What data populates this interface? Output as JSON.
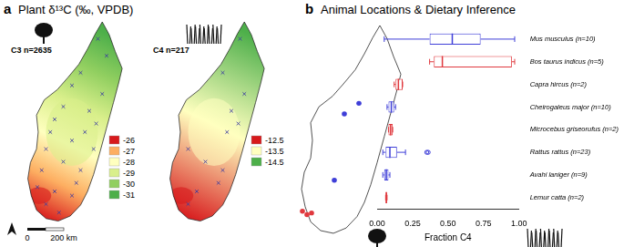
{
  "panel_a": {
    "panel_label": "a",
    "title": "Plant δ¹³C (‰, VPDB)",
    "maps": [
      {
        "label": "C3 n=2635",
        "legend": [
          {
            "value": -26,
            "color": "#d7191c"
          },
          {
            "value": -27,
            "color": "#fdae61"
          },
          {
            "value": -28,
            "color": "#ffffbf"
          },
          {
            "value": -29,
            "color": "#d9ef8b"
          },
          {
            "value": -30,
            "color": "#91cf60"
          },
          {
            "value": -31,
            "color": "#4daf4a"
          }
        ]
      },
      {
        "label": "C4 n=217",
        "legend": [
          {
            "value": -12.5,
            "color": "#d7191c"
          },
          {
            "value": -13.5,
            "color": "#ffffbf"
          },
          {
            "value": -14.5,
            "color": "#4daf4a"
          }
        ]
      }
    ],
    "scale_bar": {
      "labels": [
        "0",
        "200 km"
      ]
    }
  },
  "chart_data": {
    "type": "boxplot",
    "panel_label": "b",
    "title": "Animal Locations & Dietary Inference",
    "orientation": "horizontal",
    "x_label": "Fraction C4",
    "categories": [
      "Mus musculus (n=10)",
      "Bos taurus indicus (n=5)",
      "Capra hircus (n=2)",
      "Cheirogaleus major (n=10)",
      "Microcebus griseorufus (n=2)",
      "Rattus rattus (n=23)",
      "Avahi laniger (n=9)",
      "Lemur catta (n=2)"
    ],
    "values": [
      {
        "min": 0.05,
        "q1": 0.37,
        "median": 0.53,
        "q3": 0.73,
        "max": 0.97,
        "outliers": []
      },
      {
        "min": 0.37,
        "q1": 0.4,
        "median": 0.46,
        "q3": 0.95,
        "max": 0.97,
        "outliers": []
      },
      {
        "min": 0.12,
        "q1": 0.13,
        "median": 0.15,
        "q3": 0.18,
        "max": 0.18,
        "outliers": []
      },
      {
        "min": 0.07,
        "q1": 0.08,
        "median": 0.1,
        "q3": 0.12,
        "max": 0.13,
        "outliers": []
      },
      {
        "min": 0.08,
        "q1": 0.08,
        "median": 0.095,
        "q3": 0.11,
        "max": 0.11,
        "outliers": []
      },
      {
        "min": 0.04,
        "q1": 0.06,
        "median": 0.09,
        "q3": 0.14,
        "max": 0.2,
        "outliers": [
          0.35,
          0.36
        ]
      },
      {
        "min": 0.04,
        "q1": 0.05,
        "median": 0.065,
        "q3": 0.08,
        "max": 0.09,
        "outliers": []
      },
      {
        "min": 0.06,
        "q1": 0.06,
        "median": 0.065,
        "q3": 0.07,
        "max": 0.07,
        "outliers": []
      }
    ],
    "colors": [
      "#3f3fd8",
      "#e0393e",
      "#e0393e",
      "#3f3fd8",
      "#e0393e",
      "#3f3fd8",
      "#3f3fd8",
      "#e0393e"
    ],
    "xlim": [
      0,
      1
    ],
    "xticks": [
      {
        "value": 0,
        "label": "0.00"
      },
      0.25,
      {
        "value": 0.5,
        "label": "0.50"
      },
      0.75,
      {
        "value": 1,
        "label": "1.00"
      }
    ],
    "grid": false
  }
}
